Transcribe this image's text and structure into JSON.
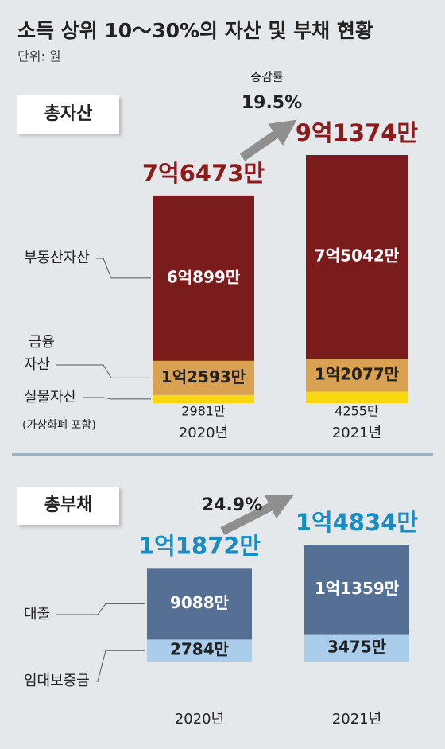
{
  "title": "소득 상위 10～30%의 자산 및 부채 현황",
  "unit": "단위: 원",
  "chart_data": [
    {
      "type": "stacked_bar",
      "label": "총자산",
      "growth_title": "증감률",
      "growth": "19.5%",
      "categories": [
        "2020년",
        "2021년"
      ],
      "series": [
        {
          "name": "부동산자산",
          "color": "#7a1c1c",
          "text_color": "#ffffff",
          "values": [
            608990000,
            750420000
          ],
          "value_labels": [
            "6억899만",
            "7억5042만"
          ]
        },
        {
          "name": "금융 자산",
          "color": "#d9a152",
          "text_color": "#222222",
          "values": [
            125930000,
            120770000
          ],
          "value_labels": [
            "1억2593만",
            "1억2077만"
          ]
        },
        {
          "name": "실물자산",
          "note": "(가상화폐 포함)",
          "color": "#f6d80c",
          "text_color": "#222222",
          "values": [
            29810000,
            42550000
          ],
          "value_labels": [
            "2981만",
            "4255만"
          ]
        }
      ],
      "totals": [
        764730000,
        913740000
      ],
      "total_labels": [
        "7억6473만",
        "9억1374만"
      ],
      "total_color": "#8e1b1b"
    },
    {
      "type": "stacked_bar",
      "label": "총부채",
      "growth": "24.9%",
      "categories": [
        "2020년",
        "2021년"
      ],
      "series": [
        {
          "name": "대출",
          "color": "#566f95",
          "text_color": "#ffffff",
          "values": [
            90880000,
            113590000
          ],
          "value_labels": [
            "9088만",
            "1억1359만"
          ]
        },
        {
          "name": "임대보증금",
          "color": "#a9cdea",
          "text_color": "#222222",
          "values": [
            27840000,
            34750000
          ],
          "value_labels": [
            "2784만",
            "3475만"
          ]
        }
      ],
      "totals": [
        118720000,
        148340000
      ],
      "total_labels": [
        "1억1872만",
        "1억4834만"
      ],
      "total_color": "#1a8cc2"
    }
  ]
}
